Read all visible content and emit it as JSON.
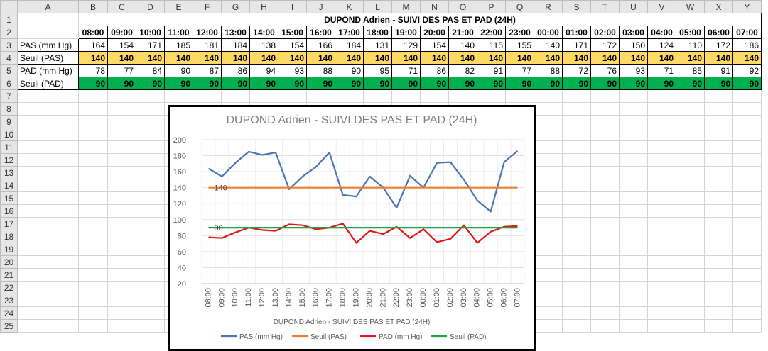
{
  "sheet": {
    "column_headers": [
      "A",
      "B",
      "C",
      "D",
      "E",
      "F",
      "G",
      "H",
      "I",
      "J",
      "K",
      "L",
      "M",
      "N",
      "O",
      "P",
      "Q",
      "R",
      "S",
      "T",
      "U",
      "V",
      "W",
      "X",
      "Y"
    ],
    "row_numbers": [
      "1",
      "2",
      "3",
      "4",
      "5",
      "6",
      "7",
      "8",
      "9",
      "10",
      "11",
      "12",
      "13",
      "14",
      "15",
      "16",
      "17",
      "18",
      "19",
      "20",
      "21",
      "22",
      "23",
      "24",
      "25"
    ],
    "title": "DUPOND Adrien  - SUIVI DES PAS ET PAD (24H)",
    "hours": [
      "08:00",
      "09:00",
      "10:00",
      "11:00",
      "12:00",
      "13:00",
      "14:00",
      "15:00",
      "16:00",
      "17:00",
      "18:00",
      "19:00",
      "20:00",
      "21:00",
      "22:00",
      "23:00",
      "00:00",
      "01:00",
      "02:00",
      "03:00",
      "04:00",
      "05:00",
      "06:00",
      "07:00"
    ],
    "rows": [
      {
        "label": "PAS (mm Hg)",
        "values": [
          164,
          154,
          171,
          185,
          181,
          184,
          138,
          154,
          166,
          184,
          131,
          129,
          154,
          140,
          115,
          155,
          140,
          171,
          172,
          150,
          124,
          110,
          172,
          186
        ]
      },
      {
        "label": "Seuil (PAS)",
        "values": [
          140,
          140,
          140,
          140,
          140,
          140,
          140,
          140,
          140,
          140,
          140,
          140,
          140,
          140,
          140,
          140,
          140,
          140,
          140,
          140,
          140,
          140,
          140,
          140
        ]
      },
      {
        "label": "PAD (mm Hg)",
        "values": [
          78,
          77,
          84,
          90,
          87,
          86,
          94,
          93,
          88,
          90,
          95,
          71,
          86,
          82,
          91,
          77,
          88,
          72,
          76,
          93,
          71,
          85,
          91,
          92
        ]
      },
      {
        "label": "Seuil (PAD)",
        "values": [
          90,
          90,
          90,
          90,
          90,
          90,
          90,
          90,
          90,
          90,
          90,
          90,
          90,
          90,
          90,
          90,
          90,
          90,
          90,
          90,
          90,
          90,
          90,
          90
        ]
      }
    ]
  },
  "chart_data": {
    "type": "line",
    "title": "DUPOND Adrien  - SUIVI DES PAS ET PAD (24H)",
    "xlabel": "DUPOND Adrien  - SUIVI DES PAS ET PAD (24H)",
    "ylabel": "",
    "categories": [
      "08:00",
      "09:00",
      "10:00",
      "11:00",
      "12:00",
      "13:00",
      "14:00",
      "15:00",
      "16:00",
      "17:00",
      "18:00",
      "19:00",
      "20:00",
      "21:00",
      "22:00",
      "23:00",
      "00:00",
      "01:00",
      "02:00",
      "03:00",
      "04:00",
      "05:00",
      "06:00",
      "07:00"
    ],
    "ylim": [
      20,
      200
    ],
    "yticks": [
      20,
      40,
      60,
      80,
      100,
      120,
      140,
      160,
      180,
      200
    ],
    "grid": true,
    "legend": "bottom",
    "series": [
      {
        "name": "PAS (mm Hg)",
        "color": "#4a74b5",
        "values": [
          164,
          154,
          171,
          185,
          181,
          184,
          138,
          154,
          166,
          184,
          131,
          129,
          154,
          140,
          115,
          155,
          140,
          171,
          172,
          150,
          124,
          110,
          172,
          186
        ]
      },
      {
        "name": "Seuil (PAS)",
        "color": "#ed7d31",
        "values": [
          140,
          140,
          140,
          140,
          140,
          140,
          140,
          140,
          140,
          140,
          140,
          140,
          140,
          140,
          140,
          140,
          140,
          140,
          140,
          140,
          140,
          140,
          140,
          140
        ]
      },
      {
        "name": "PAD (mm Hg)",
        "color": "#e0161b",
        "values": [
          78,
          77,
          84,
          90,
          87,
          86,
          94,
          93,
          88,
          90,
          95,
          71,
          86,
          82,
          91,
          77,
          88,
          72,
          76,
          93,
          71,
          85,
          91,
          92
        ]
      },
      {
        "name": "Seuil (PAD)",
        "color": "#1fa340",
        "values": [
          90,
          90,
          90,
          90,
          90,
          90,
          90,
          90,
          90,
          90,
          90,
          90,
          90,
          90,
          90,
          90,
          90,
          90,
          90,
          90,
          90,
          90,
          90,
          90
        ]
      }
    ],
    "annotations": [
      {
        "series": "Seuil (PAS)",
        "text": "140"
      },
      {
        "series": "Seuil (PAD)",
        "text": "90"
      }
    ]
  }
}
